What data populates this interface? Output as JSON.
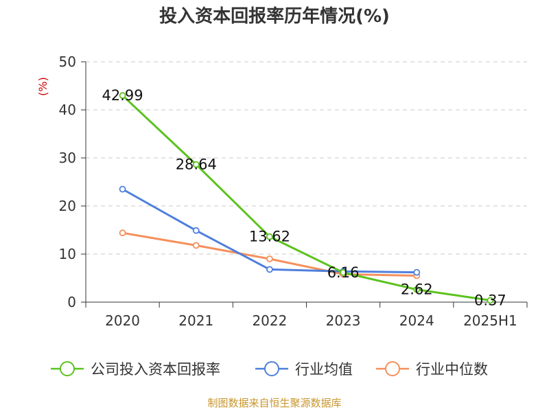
{
  "chart_data": {
    "type": "line",
    "title": "投入资本回报率历年情况(%)",
    "ylabel": "(%)",
    "categories": [
      "2020",
      "2021",
      "2022",
      "2023",
      "2024",
      "2025H1"
    ],
    "ylim": [
      0,
      50
    ],
    "yticks": [
      "0",
      "10",
      "20",
      "30",
      "40",
      "50"
    ],
    "grid": true,
    "legend_position": "bottom",
    "series": [
      {
        "name": "公司投入资本回报率",
        "color": "#5bc21e",
        "values": [
          42.99,
          28.64,
          13.62,
          6.16,
          2.62,
          0.37
        ],
        "labels": [
          "42.99",
          "28.64",
          "13.62",
          "6.16",
          "2.62",
          "0.37"
        ]
      },
      {
        "name": "行业均值",
        "color": "#4f7fdc",
        "values": [
          23.5,
          14.9,
          6.8,
          6.4,
          6.2,
          null
        ]
      },
      {
        "name": "行业中位数",
        "color": "#f58f5a",
        "values": [
          14.4,
          11.8,
          9.0,
          5.8,
          5.5,
          null
        ]
      }
    ],
    "source": "制图数据来自恒生聚源数据库"
  }
}
